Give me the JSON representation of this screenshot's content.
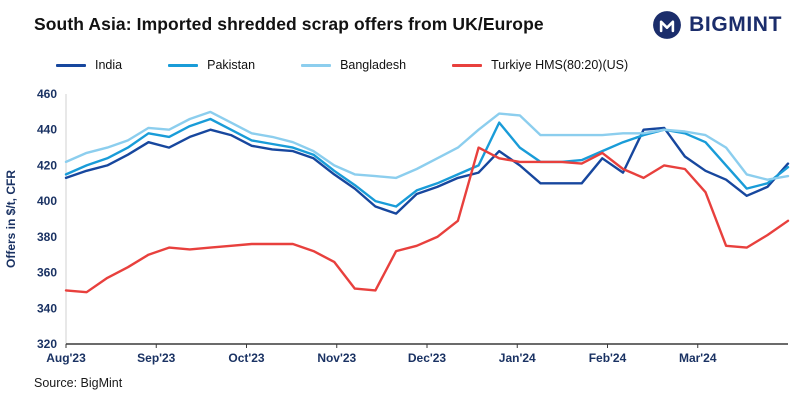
{
  "header": {
    "title": "South Asia: Imported shredded scrap offers from UK/Europe",
    "logo_text": "BIGMINT"
  },
  "source": "Source: BigMint",
  "colors": {
    "title_text": "#121212",
    "logo_navy": "#1B2D6B",
    "axis_text": "#1A3263",
    "india": "#17479E",
    "pakistan": "#199CD8",
    "bangladesh": "#8CCEEE",
    "turkiye": "#E8403D"
  },
  "chart_data": {
    "type": "line",
    "title": "South Asia: Imported shredded scrap offers from UK/Europe",
    "xlabel": "",
    "ylabel": "Offers in $/t, CFR",
    "ylim": [
      320,
      460
    ],
    "yticks": [
      320,
      340,
      360,
      380,
      400,
      420,
      440,
      460
    ],
    "x_tick_labels": [
      "Aug'23",
      "Sep'23",
      "Oct'23",
      "Nov'23",
      "Dec'23",
      "Jan'24",
      "Feb'24",
      "Mar'24"
    ],
    "x_unit": "weekly offers, Aug 2023 - late Mar 2024",
    "grid": false,
    "legend_position": "top",
    "series": [
      {
        "name": "India",
        "color": "#17479E",
        "values": [
          413,
          417,
          420,
          426,
          433,
          430,
          436,
          440,
          437,
          431,
          429,
          428,
          424,
          415,
          407,
          397,
          393,
          404,
          408,
          413,
          416,
          428,
          420,
          410,
          410,
          410,
          424,
          416,
          440,
          441,
          425,
          417,
          412,
          403,
          408,
          421
        ]
      },
      {
        "name": "Pakistan",
        "color": "#199CD8",
        "values": [
          415,
          420,
          424,
          430,
          438,
          436,
          442,
          446,
          440,
          434,
          432,
          430,
          426,
          417,
          409,
          400,
          397,
          406,
          410,
          415,
          420,
          444,
          430,
          422,
          422,
          423,
          428,
          433,
          437,
          440,
          438,
          433,
          420,
          407,
          410,
          419
        ]
      },
      {
        "name": "Bangladesh",
        "color": "#8CCEEE",
        "values": [
          422,
          427,
          430,
          434,
          441,
          440,
          446,
          450,
          444,
          438,
          436,
          433,
          428,
          420,
          415,
          414,
          413,
          418,
          424,
          430,
          440,
          449,
          448,
          437,
          437,
          437,
          437,
          438,
          438,
          440,
          439,
          437,
          430,
          415,
          412,
          414
        ]
      },
      {
        "name": "Turkiye HMS(80:20)(US)",
        "color": "#E8403D",
        "values": [
          350,
          349,
          357,
          363,
          370,
          374,
          373,
          374,
          375,
          376,
          376,
          376,
          372,
          366,
          351,
          350,
          372,
          375,
          380,
          389,
          430,
          424,
          422,
          422,
          422,
          421,
          427,
          418,
          413,
          420,
          418,
          405,
          375,
          374,
          381,
          389
        ]
      }
    ]
  }
}
